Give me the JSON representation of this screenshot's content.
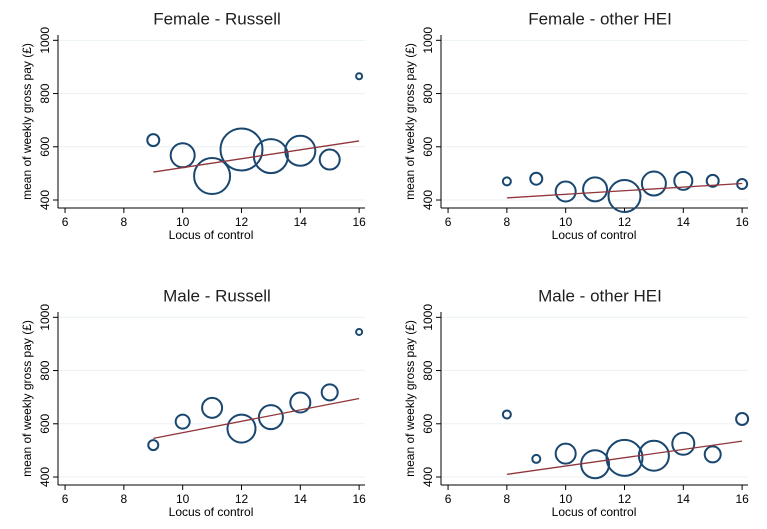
{
  "chart_data": [
    {
      "type": "bubble",
      "title": "Female - Russell",
      "xlabel": "Locus of control",
      "ylabel": "mean of weekly gross pay (£)",
      "x": [
        9,
        10,
        11,
        12,
        13,
        14,
        15,
        16
      ],
      "values": [
        625,
        568,
        490,
        590,
        565,
        585,
        552,
        865
      ],
      "sizes": [
        6,
        12,
        18,
        21,
        17,
        15,
        10,
        3
      ],
      "color": "#1a476f",
      "fit": {
        "x": [
          9,
          16
        ],
        "values": [
          505,
          622
        ],
        "color": "#90353b"
      },
      "xlim": [
        5.76,
        16.2
      ],
      "xticks": [
        6,
        8,
        10,
        12,
        14,
        16
      ],
      "ylim": [
        370,
        1020
      ],
      "yticks": [
        400,
        600,
        800,
        1000
      ],
      "grid": true
    },
    {
      "type": "bubble",
      "title": "Female - other HEI",
      "xlabel": "Locus of control",
      "ylabel": "mean of weekly gross pay (£)",
      "x": [
        8,
        9,
        10,
        11,
        12,
        13,
        14,
        15,
        16
      ],
      "values": [
        470,
        480,
        432,
        440,
        415,
        462,
        472,
        472,
        460
      ],
      "sizes": [
        4,
        6,
        10,
        12,
        16,
        12,
        9,
        6,
        5
      ],
      "color": "#1a476f",
      "fit": {
        "x": [
          8,
          16
        ],
        "values": [
          408,
          462
        ],
        "color": "#90353b"
      },
      "xlim": [
        5.76,
        16.2
      ],
      "xticks": [
        6,
        8,
        10,
        12,
        14,
        16
      ],
      "ylim": [
        370,
        1020
      ],
      "yticks": [
        400,
        600,
        800,
        1000
      ],
      "grid": true
    },
    {
      "type": "bubble",
      "title": "Male - Russell",
      "xlabel": "Locus of control",
      "ylabel": "mean of weekly gross pay (£)",
      "x": [
        9,
        10,
        11,
        12,
        13,
        14,
        15,
        16
      ],
      "values": [
        520,
        608,
        660,
        582,
        625,
        680,
        718,
        945
      ],
      "sizes": [
        5,
        7,
        10,
        14,
        12,
        10,
        8,
        3
      ],
      "color": "#1a476f",
      "fit": {
        "x": [
          9,
          16
        ],
        "values": [
          545,
          695
        ],
        "color": "#90353b"
      },
      "xlim": [
        5.76,
        16.2
      ],
      "xticks": [
        6,
        8,
        10,
        12,
        14,
        16
      ],
      "ylim": [
        370,
        1020
      ],
      "yticks": [
        400,
        600,
        800,
        1000
      ],
      "grid": true
    },
    {
      "type": "bubble",
      "title": "Male - other HEI",
      "xlabel": "Locus of control",
      "ylabel": "mean of weekly gross pay (£)",
      "x": [
        8,
        9,
        10,
        11,
        12,
        13,
        14,
        15,
        16
      ],
      "values": [
        635,
        468,
        488,
        448,
        472,
        480,
        525,
        485,
        618
      ],
      "sizes": [
        4,
        4,
        10,
        14,
        18,
        15,
        11,
        8,
        6
      ],
      "color": "#1a476f",
      "fit": {
        "x": [
          8,
          16
        ],
        "values": [
          410,
          535
        ],
        "color": "#90353b"
      },
      "xlim": [
        5.76,
        16.2
      ],
      "xticks": [
        6,
        8,
        10,
        12,
        14,
        16
      ],
      "ylim": [
        370,
        1020
      ],
      "yticks": [
        400,
        600,
        800,
        1000
      ],
      "grid": true
    }
  ]
}
